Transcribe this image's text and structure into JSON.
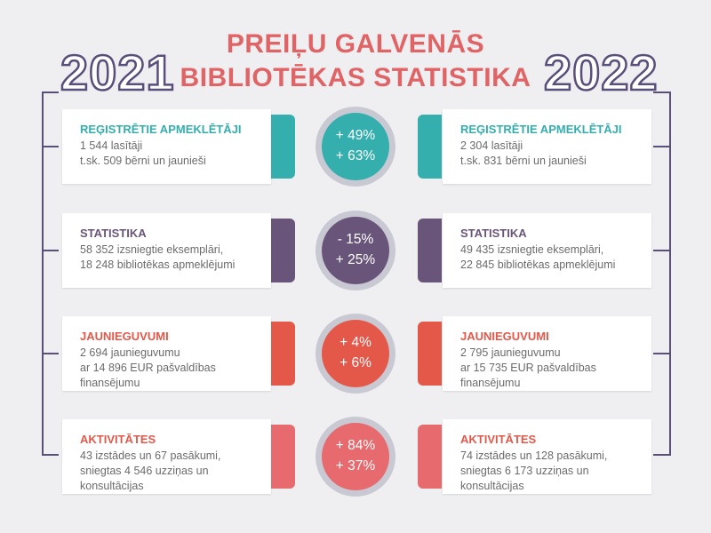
{
  "title_line1": "PREIĻU GALVENĀS",
  "title_line2": "BIBLIOTĒKAS STATISTIKA",
  "year_left": "2021",
  "year_right": "2022",
  "colors": {
    "teal": "#35aeae",
    "purple": "#6a557a",
    "orange": "#e4584a",
    "pink": "#e66a6e",
    "title": "#e06466",
    "outline": "#5a4e7a"
  },
  "rows": [
    {
      "heading": "REĢISTRĒTIE APMEKLĒTĀJI",
      "left_text": "1 544 lasītāji\nt.sk. 509 bērni un jaunieši",
      "right_text": "2 304 lasītāji\nt.sk. 831 bērni un jaunieši",
      "change1": "+ 49%",
      "change2": "+ 63%"
    },
    {
      "heading": "STATISTIKA",
      "left_text": "58 352 izsniegtie eksemplāri,\n18 248 bibliotēkas apmeklējumi",
      "right_text": "49 435 izsniegtie eksemplāri,\n22 845 bibliotēkas apmeklējumi",
      "change1": "- 15%",
      "change2": "+ 25%"
    },
    {
      "heading": "JAUNIEGUVUMI",
      "left_text": "2 694 jaunieguvumu\nar 14 896 EUR pašvaldības\nfinansējumu",
      "right_text": "2 795 jaunieguvumu\nar 15 735 EUR pašvaldības\nfinansējumu",
      "change1": "+ 4%",
      "change2": "+ 6%"
    },
    {
      "heading": "AKTIVITĀTES",
      "left_text": "43 izstādes un 67 pasākumi,\nsniegtas 4 546 uzziņas un\nkonsultācijas",
      "right_text": "74 izstādes un 128 pasākumi,\nsniegtas  6 173 uzziņas un\nkonsultācijas",
      "change1": "+ 84%",
      "change2": "+ 37%"
    }
  ]
}
